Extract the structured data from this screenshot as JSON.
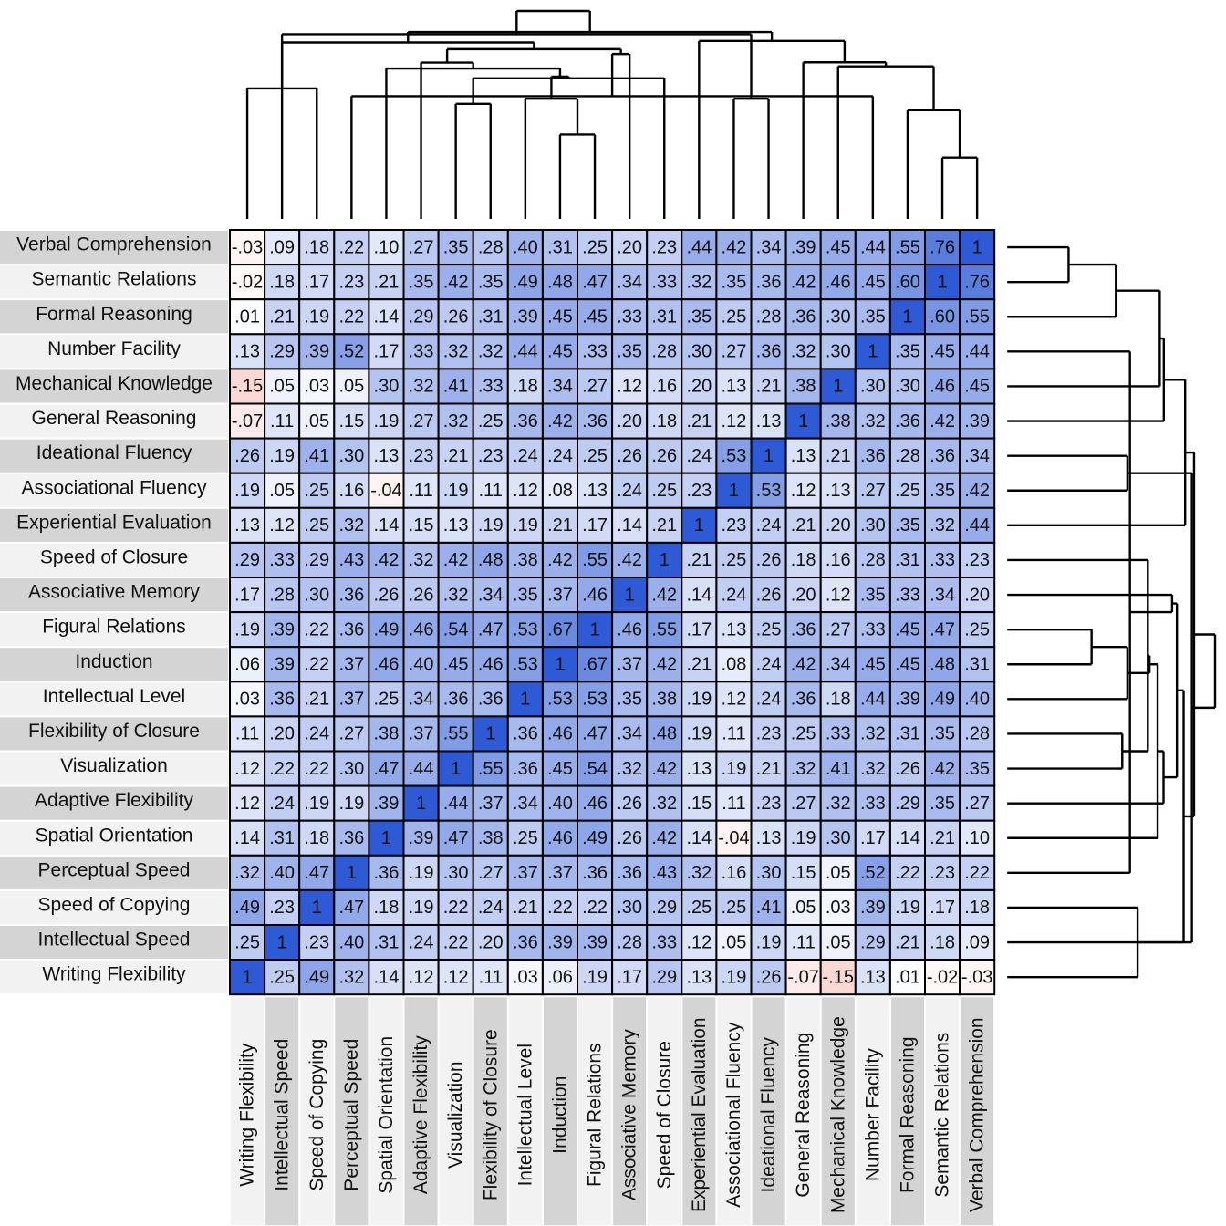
{
  "chart_data": {
    "type": "heatmap",
    "variables": [
      "Writing Flexibility",
      "Intellectual Speed",
      "Speed of Copying",
      "Perceptual Speed",
      "Spatial Orientation",
      "Adaptive Flexibility",
      "Visualization",
      "Flexibility of Closure",
      "Intellectual Level",
      "Induction",
      "Figural Relations",
      "Associative Memory",
      "Speed of Closure",
      "Experiential Evaluation",
      "Associational Fluency",
      "Ideational Fluency",
      "General Reasoning",
      "Mechanical Knowledge",
      "Number Facility",
      "Formal Reasoning",
      "Semantic Relations",
      "Verbal Comprehension"
    ],
    "row_order": "reversed",
    "matrix": [
      [
        1,
        0.25,
        0.49,
        0.32,
        0.14,
        0.12,
        0.12,
        0.11,
        0.03,
        0.06,
        0.19,
        0.17,
        0.29,
        0.13,
        0.19,
        0.26,
        -0.07,
        -0.15,
        0.13,
        0.01,
        -0.02,
        -0.03
      ],
      [
        0.25,
        1,
        0.23,
        0.4,
        0.31,
        0.24,
        0.22,
        0.2,
        0.36,
        0.39,
        0.39,
        0.28,
        0.33,
        0.12,
        0.05,
        0.19,
        0.11,
        0.05,
        0.29,
        0.21,
        0.18,
        0.09
      ],
      [
        0.49,
        0.23,
        1,
        0.47,
        0.18,
        0.19,
        0.22,
        0.24,
        0.21,
        0.22,
        0.22,
        0.3,
        0.29,
        0.25,
        0.25,
        0.41,
        0.05,
        0.03,
        0.39,
        0.19,
        0.17,
        0.18
      ],
      [
        0.32,
        0.4,
        0.47,
        1,
        0.36,
        0.19,
        0.3,
        0.27,
        0.37,
        0.37,
        0.36,
        0.36,
        0.43,
        0.32,
        0.16,
        0.3,
        0.15,
        0.05,
        0.52,
        0.22,
        0.23,
        0.22
      ],
      [
        0.14,
        0.31,
        0.18,
        0.36,
        1,
        0.39,
        0.47,
        0.38,
        0.25,
        0.46,
        0.49,
        0.26,
        0.42,
        0.14,
        -0.04,
        0.13,
        0.19,
        0.3,
        0.17,
        0.14,
        0.21,
        0.1
      ],
      [
        0.12,
        0.24,
        0.19,
        0.19,
        0.39,
        1,
        0.44,
        0.37,
        0.34,
        0.4,
        0.46,
        0.26,
        0.32,
        0.15,
        0.11,
        0.23,
        0.27,
        0.32,
        0.33,
        0.29,
        0.35,
        0.27
      ],
      [
        0.12,
        0.22,
        0.22,
        0.3,
        0.47,
        0.44,
        1,
        0.55,
        0.36,
        0.45,
        0.54,
        0.32,
        0.42,
        0.13,
        0.19,
        0.21,
        0.32,
        0.41,
        0.32,
        0.26,
        0.42,
        0.35
      ],
      [
        0.11,
        0.2,
        0.24,
        0.27,
        0.38,
        0.37,
        0.55,
        1,
        0.36,
        0.46,
        0.47,
        0.34,
        0.48,
        0.19,
        0.11,
        0.23,
        0.25,
        0.33,
        0.32,
        0.31,
        0.35,
        0.28
      ],
      [
        0.03,
        0.36,
        0.21,
        0.37,
        0.25,
        0.34,
        0.36,
        0.36,
        1,
        0.53,
        0.53,
        0.35,
        0.38,
        0.19,
        0.12,
        0.24,
        0.36,
        0.18,
        0.44,
        0.39,
        0.49,
        0.4
      ],
      [
        0.06,
        0.39,
        0.22,
        0.37,
        0.46,
        0.4,
        0.45,
        0.46,
        0.53,
        1,
        0.67,
        0.37,
        0.42,
        0.21,
        0.08,
        0.24,
        0.42,
        0.34,
        0.45,
        0.45,
        0.48,
        0.31
      ],
      [
        0.19,
        0.39,
        0.22,
        0.36,
        0.49,
        0.46,
        0.54,
        0.47,
        0.53,
        0.67,
        1,
        0.46,
        0.55,
        0.17,
        0.13,
        0.25,
        0.36,
        0.27,
        0.33,
        0.45,
        0.47,
        0.25
      ],
      [
        0.17,
        0.28,
        0.3,
        0.36,
        0.26,
        0.26,
        0.32,
        0.34,
        0.35,
        0.37,
        0.46,
        1,
        0.42,
        0.14,
        0.24,
        0.26,
        0.2,
        0.12,
        0.35,
        0.33,
        0.34,
        0.2
      ],
      [
        0.29,
        0.33,
        0.29,
        0.43,
        0.42,
        0.32,
        0.42,
        0.48,
        0.38,
        0.42,
        0.55,
        0.42,
        1,
        0.21,
        0.25,
        0.26,
        0.18,
        0.16,
        0.28,
        0.31,
        0.33,
        0.23
      ],
      [
        0.13,
        0.12,
        0.25,
        0.32,
        0.14,
        0.15,
        0.13,
        0.19,
        0.19,
        0.21,
        0.17,
        0.14,
        0.21,
        1,
        0.23,
        0.24,
        0.21,
        0.2,
        0.3,
        0.35,
        0.32,
        0.44
      ],
      [
        0.19,
        0.05,
        0.25,
        0.16,
        -0.04,
        0.11,
        0.19,
        0.11,
        0.12,
        0.08,
        0.13,
        0.24,
        0.25,
        0.23,
        1,
        0.53,
        0.12,
        0.13,
        0.27,
        0.25,
        0.35,
        0.42
      ],
      [
        0.26,
        0.19,
        0.41,
        0.3,
        0.13,
        0.23,
        0.21,
        0.23,
        0.24,
        0.24,
        0.25,
        0.26,
        0.26,
        0.24,
        0.53,
        1,
        0.13,
        0.21,
        0.36,
        0.28,
        0.36,
        0.34
      ],
      [
        -0.07,
        0.11,
        0.05,
        0.15,
        0.19,
        0.27,
        0.32,
        0.25,
        0.36,
        0.42,
        0.36,
        0.2,
        0.18,
        0.21,
        0.12,
        0.13,
        1,
        0.38,
        0.32,
        0.36,
        0.42,
        0.39
      ],
      [
        -0.15,
        0.05,
        0.03,
        0.05,
        0.3,
        0.32,
        0.41,
        0.33,
        0.18,
        0.34,
        0.27,
        0.12,
        0.16,
        0.2,
        0.13,
        0.21,
        0.38,
        1,
        0.3,
        0.3,
        0.46,
        0.45
      ],
      [
        0.13,
        0.29,
        0.39,
        0.52,
        0.17,
        0.33,
        0.32,
        0.32,
        0.44,
        0.45,
        0.33,
        0.35,
        0.28,
        0.3,
        0.27,
        0.36,
        0.32,
        0.3,
        1,
        0.35,
        0.45,
        0.44
      ],
      [
        0.01,
        0.21,
        0.19,
        0.22,
        0.14,
        0.29,
        0.26,
        0.31,
        0.39,
        0.45,
        0.45,
        0.33,
        0.31,
        0.35,
        0.25,
        0.28,
        0.36,
        0.3,
        0.35,
        1,
        0.6,
        0.55
      ],
      [
        -0.02,
        0.18,
        0.17,
        0.23,
        0.21,
        0.35,
        0.42,
        0.35,
        0.49,
        0.48,
        0.47,
        0.34,
        0.33,
        0.32,
        0.35,
        0.36,
        0.42,
        0.46,
        0.45,
        0.6,
        1,
        0.76
      ],
      [
        -0.03,
        0.09,
        0.18,
        0.22,
        0.1,
        0.27,
        0.35,
        0.28,
        0.4,
        0.31,
        0.25,
        0.2,
        0.23,
        0.44,
        0.42,
        0.34,
        0.39,
        0.45,
        0.44,
        0.55,
        0.76,
        1
      ]
    ],
    "color_scale": {
      "negative": "#e8402a",
      "zero": "#ffffff",
      "positive": "#2e5ad6"
    },
    "dendrogram": "hierarchical clustering on both axes"
  }
}
